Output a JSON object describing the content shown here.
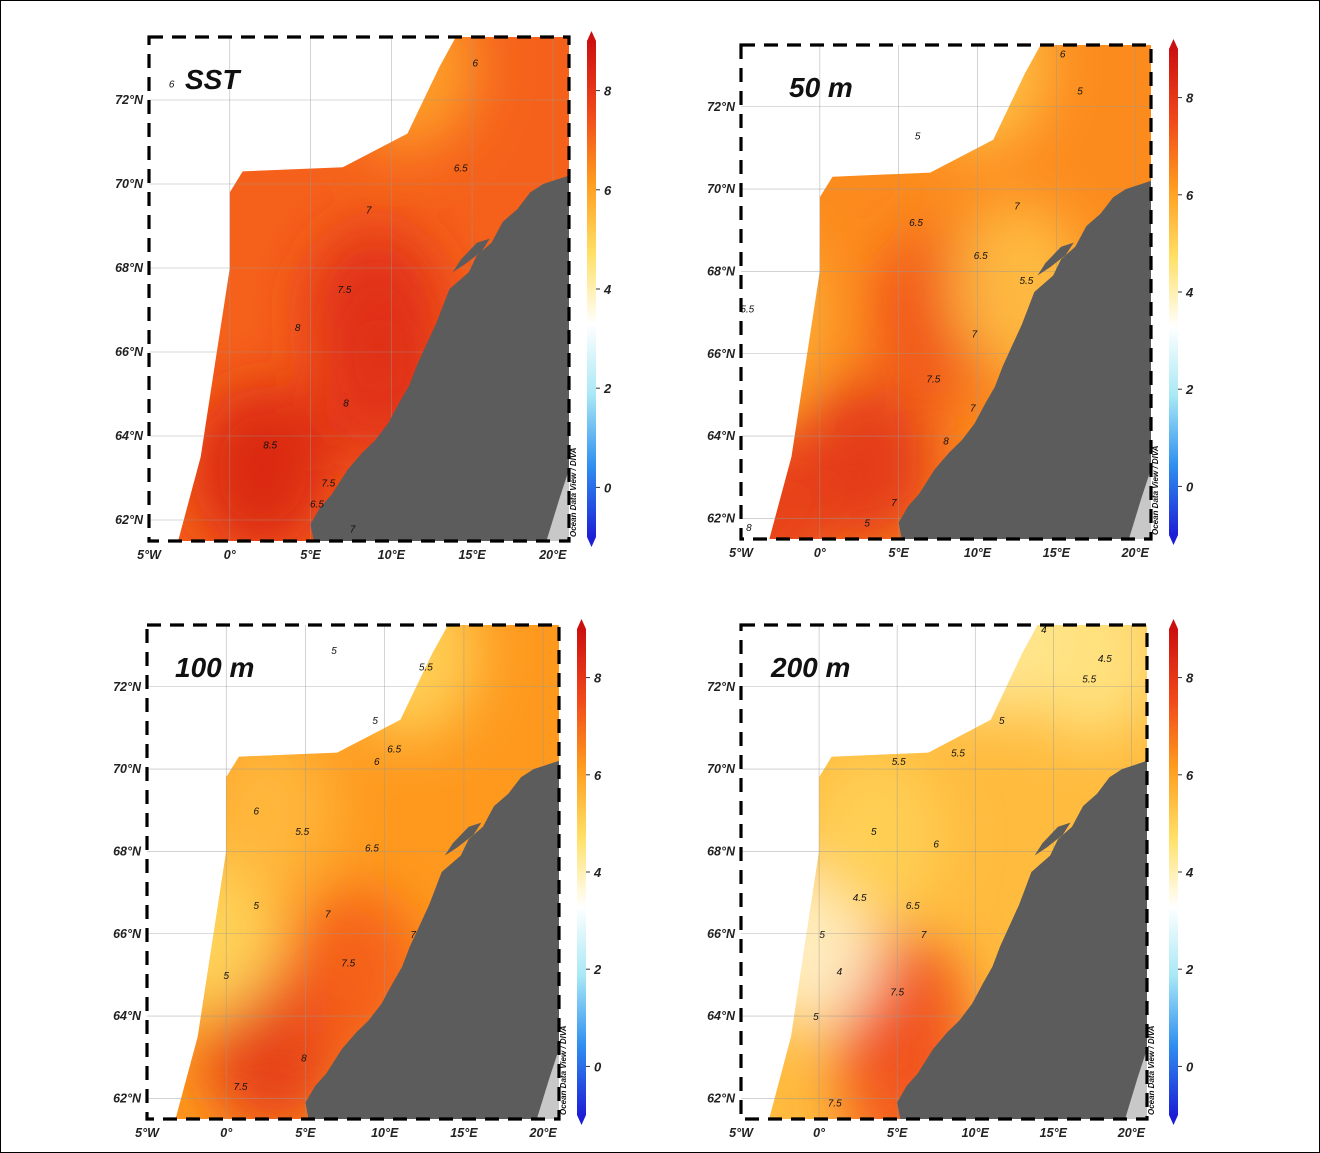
{
  "figure": {
    "panels": [
      {
        "id": "sst",
        "title": "SST",
        "contour_labels": [
          "6",
          "6",
          "6.5",
          "7",
          "7.5",
          "8",
          "8",
          "8.5",
          "7.5",
          "6.5",
          "7"
        ],
        "contour_values": [
          6,
          6,
          6.5,
          7,
          7.5,
          8,
          8,
          8.5,
          7.5,
          6.5,
          7
        ],
        "warm_cores": [
          [
            9,
            67,
            8.3
          ],
          [
            2,
            63.2,
            8.6
          ],
          [
            9.5,
            65.3,
            8.2
          ]
        ],
        "cold_cores": [
          [
            11,
            72.8,
            5.9
          ]
        ]
      },
      {
        "id": "50m",
        "title": "50 m",
        "contour_labels": [
          "5",
          "6",
          "5",
          "6.5",
          "7",
          "6.5",
          "5.5",
          "5.5",
          "7",
          "7.5",
          "7",
          "8",
          "7",
          "5",
          "8"
        ],
        "contour_values": [
          5,
          6,
          5,
          6.5,
          7,
          6.5,
          5.5,
          5.5,
          7,
          7.5,
          7,
          8,
          7,
          5,
          8
        ],
        "warm_cores": [
          [
            3,
            63.3,
            8.2
          ],
          [
            8,
            67,
            7.6
          ],
          [
            -4,
            62,
            8
          ]
        ],
        "cold_cores": [
          [
            10,
            73,
            5.2
          ],
          [
            12.5,
            67.6,
            5.3
          ],
          [
            -4.5,
            67,
            5.4
          ]
        ]
      },
      {
        "id": "100m",
        "title": "100 m",
        "contour_labels": [
          "5",
          "5.5",
          "5",
          "6.5",
          "6",
          "6",
          "5.5",
          "6.5",
          "5",
          "7",
          "7",
          "7.5",
          "5",
          "8",
          "7.5"
        ],
        "contour_values": [
          5,
          5.5,
          5,
          6.5,
          6,
          6,
          5.5,
          6.5,
          5,
          7,
          7,
          7.5,
          5,
          8,
          7.5
        ],
        "warm_cores": [
          [
            3,
            63.2,
            8.1
          ],
          [
            8,
            65,
            7.3
          ]
        ],
        "cold_cores": [
          [
            -1,
            66,
            4.8
          ],
          [
            11.5,
            72.8,
            4.9
          ],
          [
            2.5,
            69,
            5.5
          ]
        ]
      },
      {
        "id": "200m",
        "title": "200 m",
        "contour_labels": [
          "4",
          "4.5",
          "5.5",
          "5",
          "5.5",
          "5.5",
          "5",
          "6",
          "4.5",
          "6.5",
          "5",
          "7",
          "4",
          "7.5",
          "5",
          "7.5"
        ],
        "contour_values": [
          4,
          4.5,
          5.5,
          5,
          5.5,
          5.5,
          5,
          6,
          4.5,
          6.5,
          5,
          7,
          4,
          7.5,
          5,
          7.5
        ],
        "warm_cores": [
          [
            5,
            64,
            7.6
          ],
          [
            6,
            62,
            7.4
          ]
        ],
        "cold_cores": [
          [
            -0.5,
            65.7,
            3.7
          ],
          [
            11,
            73.3,
            4.2
          ],
          [
            3.5,
            68.4,
            5
          ],
          [
            17.5,
            72.8,
            4.4
          ]
        ]
      }
    ],
    "axes": {
      "lon_labels": [
        "5°W",
        "0°",
        "5°E",
        "10°E",
        "15°E",
        "20°E"
      ],
      "lon_values": [
        -5,
        0,
        5,
        10,
        15,
        20
      ],
      "lat_labels": [
        "72°N",
        "70°N",
        "68°N",
        "66°N",
        "64°N",
        "62°N"
      ],
      "lat_values": [
        72,
        70,
        68,
        66,
        64,
        62
      ],
      "lon_range": [
        -5,
        21
      ],
      "lat_range": [
        61.5,
        73.5
      ]
    },
    "colorbar": {
      "tick_labels": [
        "8",
        "6",
        "4",
        "2",
        "0"
      ],
      "tick_values": [
        8,
        6,
        4,
        2,
        0
      ],
      "range": [
        -1,
        9
      ],
      "colors": [
        "#1d1fd6",
        "#2f8ff0",
        "#a8e8f5",
        "#ffffff",
        "#ffe066",
        "#ff9c1e",
        "#f0471a",
        "#cc1010"
      ]
    },
    "credit": "Ocean Data View / DIVA",
    "land_color": "#5c5c5c",
    "ice_color": "#c8c8c8"
  }
}
